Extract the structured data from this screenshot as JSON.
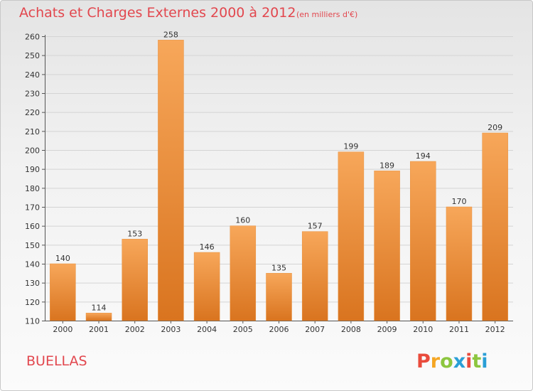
{
  "header": {
    "title": "Achats et Charges Externes 2000 à 2012",
    "subtitle": "(en milliers d'€)"
  },
  "footer": {
    "commune": "BUELLAS",
    "logo_text": "Proxiti",
    "logo_colors": [
      "#e94b3c",
      "#f5a623",
      "#8cc63f",
      "#2a9fd6",
      "#e94b3c",
      "#8cc63f",
      "#2a9fd6"
    ]
  },
  "colors": {
    "bar_light": "#f7a75a",
    "bar_dark": "#d9741f",
    "title": "#e2474e"
  },
  "chart_data": {
    "type": "bar",
    "categories": [
      "2000",
      "2001",
      "2002",
      "2003",
      "2004",
      "2005",
      "2006",
      "2007",
      "2008",
      "2009",
      "2010",
      "2011",
      "2012"
    ],
    "values": [
      140,
      114,
      153,
      258,
      146,
      160,
      135,
      157,
      199,
      189,
      194,
      170,
      209
    ],
    "title": "Achats et Charges Externes 2000 à 2012",
    "subtitle": "(en milliers d'€)",
    "xlabel": "",
    "ylabel": "",
    "ylim": [
      110,
      260
    ],
    "yticks": [
      110,
      120,
      130,
      140,
      150,
      160,
      170,
      180,
      190,
      200,
      210,
      220,
      230,
      240,
      250,
      260
    ],
    "grid": true
  }
}
